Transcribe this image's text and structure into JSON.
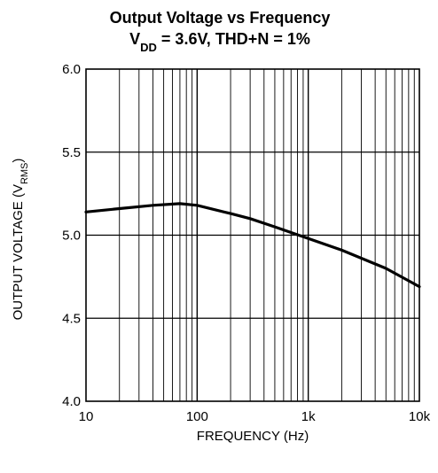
{
  "chart_data": {
    "type": "line",
    "title": "Output Voltage vs Frequency",
    "subtitle": {
      "prefix": "V",
      "sub": "DD",
      "suffix": " = 3.6V, THD+N = 1%"
    },
    "xlabel": "FREQUENCY (Hz)",
    "ylabel": {
      "prefix": "OUTPUT VOLTAGE (V",
      "sub": "RMS",
      "suffix": ")"
    },
    "x_scale": "log",
    "xlim": [
      10,
      10000
    ],
    "ylim": [
      4.0,
      6.0
    ],
    "x_ticks": [
      {
        "value": 10,
        "label": "10"
      },
      {
        "value": 100,
        "label": "100"
      },
      {
        "value": 1000,
        "label": "1k"
      },
      {
        "value": 10000,
        "label": "10k"
      }
    ],
    "y_ticks": [
      {
        "value": 4.0,
        "label": "4.0"
      },
      {
        "value": 4.5,
        "label": "4.5"
      },
      {
        "value": 5.0,
        "label": "5.0"
      },
      {
        "value": 5.5,
        "label": "5.5"
      },
      {
        "value": 6.0,
        "label": "6.0"
      }
    ],
    "grid": true,
    "series": [
      {
        "x": [
          10,
          20,
          40,
          70,
          100,
          200,
          300,
          500,
          1000,
          2000,
          5000,
          10000
        ],
        "values": [
          5.14,
          5.16,
          5.18,
          5.19,
          5.18,
          5.13,
          5.1,
          5.05,
          4.98,
          4.91,
          4.8,
          4.69
        ]
      }
    ]
  }
}
